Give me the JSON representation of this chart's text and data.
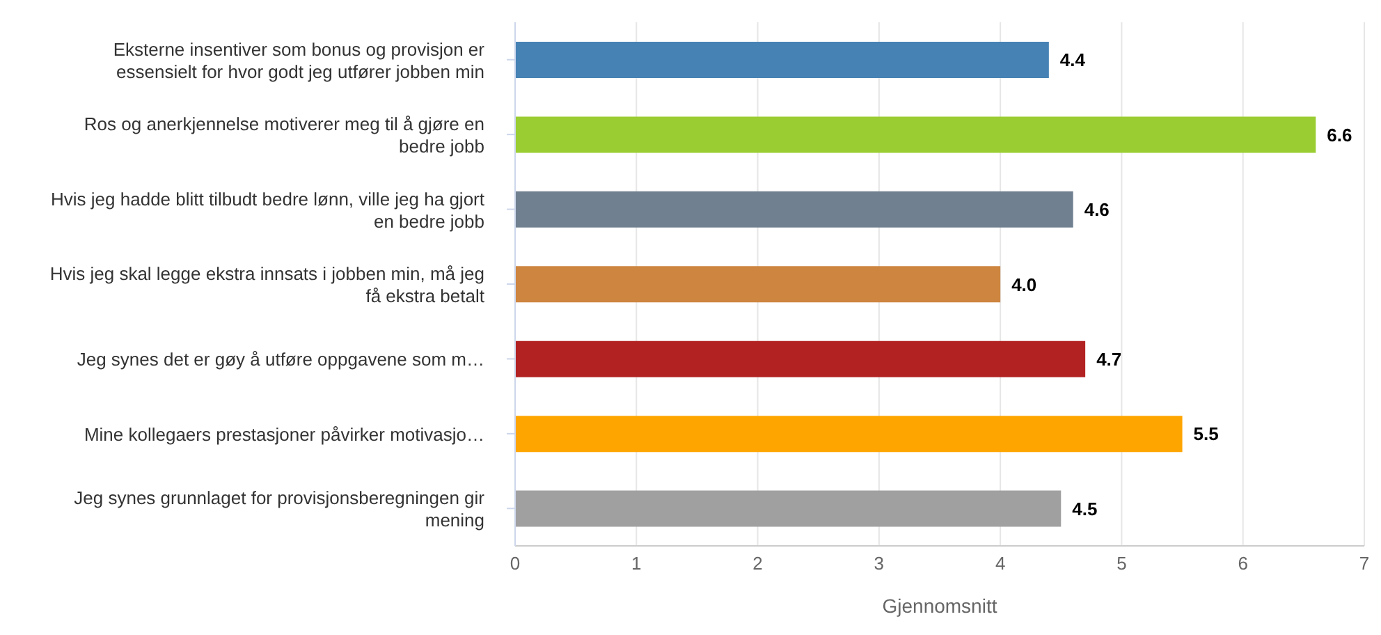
{
  "chart_data": {
    "type": "bar",
    "orientation": "horizontal",
    "xlabel": "Gjennomsnitt",
    "categories": [
      "Eksterne insentiver som bonus og provisjon er essensielt for hvor godt jeg utfører jobben min",
      "Ros og anerkjennelse motiverer meg til å gjøre en bedre jobb",
      "Hvis jeg hadde blitt tilbudt bedre lønn, ville jeg ha gjort en bedre jobb",
      "Hvis jeg skal legge ekstra innsats i jobben min, må jeg få ekstra betalt",
      "Jeg synes det er gøy å utføre oppgavene som m…",
      "Mine kollegaers prestasjoner påvirker motivasjo…",
      "Jeg synes grunnlaget for provisjonsberegningen gir mening"
    ],
    "values": [
      4.4,
      6.6,
      4.6,
      4.0,
      4.7,
      5.5,
      4.5
    ],
    "value_labels": [
      "4.4",
      "6.6",
      "4.6",
      "4.0",
      "4.7",
      "5.5",
      "4.5"
    ],
    "colors": [
      "#4682b4",
      "#9acd32",
      "#708090",
      "#cd853f",
      "#b22222",
      "#ffa500",
      "#a0a0a0"
    ],
    "xlim": [
      0,
      7
    ],
    "xticks": [
      0,
      1,
      2,
      3,
      4,
      5,
      6,
      7
    ],
    "grid": "x"
  }
}
